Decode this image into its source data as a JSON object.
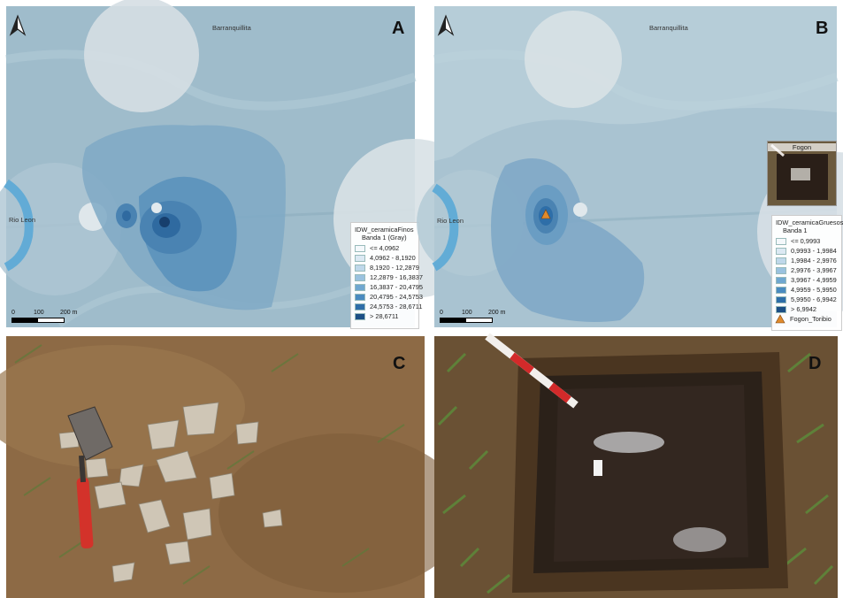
{
  "panels": {
    "a": {
      "letter": "A",
      "places": {
        "north_town": "Barranquillita",
        "river": "Rio Leon"
      },
      "legend": {
        "title": "IDW_ceramicaFinos",
        "subtitle": "Banda 1 (Gray)",
        "classes": [
          {
            "label": "<= 4,0962",
            "color": "#f4f8fb"
          },
          {
            "label": "4,0962 - 8,1920",
            "color": "#dce9f3"
          },
          {
            "label": "8,1920 - 12,2879",
            "color": "#bfd8ea"
          },
          {
            "label": "12,2879 - 16,3837",
            "color": "#9ac2df"
          },
          {
            "label": "16,3837 - 20,4795",
            "color": "#6fa7d0"
          },
          {
            "label": "20,4795 - 24,5753",
            "color": "#4a8bc0"
          },
          {
            "label": "24,5753 - 28,6711",
            "color": "#2e6ea8"
          },
          {
            "label": "> 28,6711",
            "color": "#1c4f85"
          }
        ]
      },
      "scale": {
        "ticks": [
          "0",
          "100",
          "200 m"
        ]
      }
    },
    "b": {
      "letter": "B",
      "places": {
        "north_town": "Barranquillita",
        "river": "Rio Leon"
      },
      "inset_label": "Fogon",
      "legend": {
        "title": "IDW_ceramicaGruesos",
        "subtitle": "Banda 1",
        "classes": [
          {
            "label": "<= 0,9993",
            "color": "#f4f8fb"
          },
          {
            "label": "0,9993 - 1,9984",
            "color": "#dce9f3"
          },
          {
            "label": "1,9984 - 2,9976",
            "color": "#bfd8ea"
          },
          {
            "label": "2,9976 - 3,9967",
            "color": "#9ac2df"
          },
          {
            "label": "3,9967 - 4,9959",
            "color": "#6fa7d0"
          },
          {
            "label": "4,9959 - 5,9950",
            "color": "#4a8bc0"
          },
          {
            "label": "5,9950 - 6,9942",
            "color": "#2e6ea8"
          },
          {
            "label": "> 6,9942",
            "color": "#1c4f85"
          }
        ],
        "point_layer": {
          "label": "Fogon_Toribio",
          "color": "#e08a2c"
        }
      },
      "scale": {
        "ticks": [
          "0",
          "100",
          "200 m"
        ]
      }
    },
    "c": {
      "letter": "C"
    },
    "d": {
      "letter": "D"
    }
  }
}
